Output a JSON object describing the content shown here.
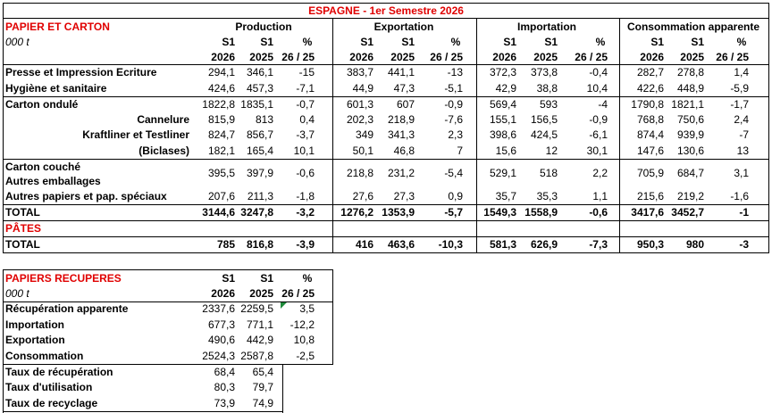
{
  "top_table": {
    "title": "ESPAGNE - 1er Semestre 2026",
    "section": "PAPIER ET CARTON",
    "unit": "000 t",
    "groups": [
      {
        "name": "Production",
        "columns": [
          [
            "S1",
            "2026"
          ],
          [
            "S1",
            "2025"
          ],
          [
            "%",
            "26 / 25"
          ]
        ]
      },
      {
        "name": "Exportation",
        "columns": [
          [
            "S1",
            "2026"
          ],
          [
            "S1",
            "2025"
          ],
          [
            "%",
            "26 / 25"
          ]
        ]
      },
      {
        "name": "Importation",
        "columns": [
          [
            "S1",
            "2026"
          ],
          [
            "S1",
            "2025"
          ],
          [
            "%",
            "26 / 25"
          ]
        ]
      },
      {
        "name": "Consommation apparente",
        "columns": [
          [
            "S1",
            "2026"
          ],
          [
            "S1",
            "2025"
          ],
          [
            "%",
            "26 / 25"
          ]
        ]
      }
    ],
    "rows": [
      {
        "labels": [
          "Presse et Impression Ecriture"
        ],
        "values": [
          "294,1",
          "346,1",
          "-15",
          "383,7",
          "441,1",
          "-13",
          "372,3",
          "373,8",
          "-0,4",
          "282,7",
          "278,8",
          "1,4"
        ]
      },
      {
        "labels": [
          "Hygiène et sanitaire"
        ],
        "values": [
          "424,6",
          "457,3",
          "-7,1",
          "44,9",
          "47,3",
          "-5,1",
          "42,9",
          "38,8",
          "10,4",
          "422,6",
          "448,9",
          "-5,9"
        ]
      },
      {
        "labels": [
          "Carton ondulé"
        ],
        "values": [
          "1822,8",
          "1835,1",
          "-0,7",
          "601,3",
          "607",
          "-0,9",
          "569,4",
          "593",
          "-4",
          "1790,8",
          "1821,1",
          "-1,7"
        ]
      },
      {
        "labels": [
          "Cannelure"
        ],
        "values": [
          "815,9",
          "813",
          "0,4",
          "202,3",
          "218,9",
          "-7,6",
          "155,1",
          "156,5",
          "-0,9",
          "768,8",
          "750,6",
          "2,4"
        ]
      },
      {
        "labels": [
          "Kraftliner et Testliner"
        ],
        "values": [
          "824,7",
          "856,7",
          "-3,7",
          "349",
          "341,3",
          "2,3",
          "398,6",
          "424,5",
          "-6,1",
          "874,4",
          "939,9",
          "-7"
        ]
      },
      {
        "labels": [
          "(Biclases)"
        ],
        "values": [
          "182,1",
          "165,4",
          "10,1",
          "50,1",
          "46,8",
          "7",
          "15,6",
          "12",
          "30,1",
          "147,6",
          "130,6",
          "13"
        ]
      },
      {
        "labels": [
          "Carton couché",
          "Autres emballages"
        ],
        "values": [
          "395,5",
          "397,9",
          "-0,6",
          "218,8",
          "231,2",
          "-5,4",
          "529,1",
          "518",
          "2,2",
          "705,9",
          "684,7",
          "3,1"
        ]
      },
      {
        "labels": [
          "Autres papiers et pap. spéciaux"
        ],
        "values": [
          "207,6",
          "211,3",
          "-1,8",
          "27,6",
          "27,3",
          "0,9",
          "35,7",
          "35,3",
          "1,1",
          "215,6",
          "219,2",
          "-1,6"
        ]
      },
      {
        "labels": [
          "TOTAL"
        ],
        "values": [
          "3144,6",
          "3247,8",
          "-3,2",
          "1276,2",
          "1353,9",
          "-5,7",
          "1549,3",
          "1558,9",
          "-0,6",
          "3417,6",
          "3452,7",
          "-1"
        ]
      }
    ],
    "pulp_section": "PÂTES",
    "pulp_rows": [
      {
        "labels": [
          "TOTAL"
        ],
        "values": [
          "785",
          "816,8",
          "-3,9",
          "416",
          "463,6",
          "-10,3",
          "581,3",
          "626,9",
          "-7,3",
          "950,3",
          "980",
          "-3"
        ]
      }
    ]
  },
  "recovered_table": {
    "title": "PAPIERS RECUPERES",
    "unit": "000 t",
    "columns": [
      [
        "S1",
        "2026"
      ],
      [
        "S1",
        "2025"
      ],
      [
        "%",
        "26 / 25"
      ]
    ],
    "rows": [
      {
        "label": "Récupération apparente",
        "values": [
          "2337,6",
          "2259,5",
          "3,5"
        ]
      },
      {
        "label": "Importation",
        "values": [
          "677,3",
          "771,1",
          "-12,2"
        ]
      },
      {
        "label": "Exportation",
        "values": [
          "490,6",
          "442,9",
          "10,8"
        ]
      },
      {
        "label": "Consommation",
        "values": [
          "2524,3",
          "2587,8",
          "-2,5"
        ]
      }
    ],
    "rate_rows": [
      {
        "label": "Taux de récupération",
        "values": [
          "68,4",
          "65,4"
        ]
      },
      {
        "label": "Taux d'utilisation",
        "values": [
          "80,3",
          "79,7"
        ]
      },
      {
        "label": "Taux de recyclage",
        "values": [
          "73,9",
          "74,9"
        ]
      }
    ]
  }
}
